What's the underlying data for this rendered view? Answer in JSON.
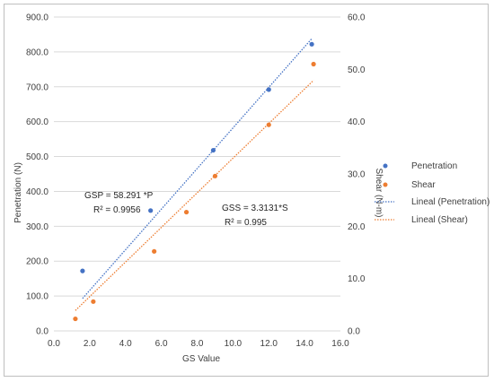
{
  "chart_data": {
    "type": "scatter",
    "xlabel": "GS Value",
    "ylabel": "Penetration (N)",
    "y2label": "Shear (N-m)",
    "xlim": [
      0,
      16
    ],
    "ylim": [
      0,
      900
    ],
    "y2lim": [
      0,
      60
    ],
    "x_ticks": [
      "0.0",
      "2.0",
      "4.0",
      "6.0",
      "8.0",
      "10.0",
      "12.0",
      "14.0",
      "16.0"
    ],
    "y_ticks": [
      "0.0",
      "100.0",
      "200.0",
      "300.0",
      "400.0",
      "500.0",
      "600.0",
      "700.0",
      "800.0",
      "900.0"
    ],
    "y2_ticks": [
      "0.0",
      "10.0",
      "20.0",
      "30.0",
      "40.0",
      "50.0",
      "60.0"
    ],
    "grid": "horizontal",
    "legend_position": "right",
    "series": [
      {
        "name": "Penetration",
        "axis": "left",
        "color": "#4472c4",
        "x": [
          1.6,
          5.4,
          8.9,
          12.0,
          14.4
        ],
        "y": [
          172,
          345,
          518,
          692,
          822
        ]
      },
      {
        "name": "Shear",
        "axis": "right",
        "color": "#ed7d31",
        "x": [
          1.2,
          2.2,
          5.6,
          7.4,
          9.0,
          12.0,
          14.5
        ],
        "y": [
          2.3,
          5.6,
          15.2,
          22.7,
          29.6,
          39.4,
          51.0
        ]
      }
    ],
    "trendlines": [
      {
        "name": "Lineal (Penetration)",
        "axis": "left",
        "color": "#4472c4",
        "x": [
          1.6,
          14.4
        ],
        "y": [
          93,
          838
        ]
      },
      {
        "name": "Lineal (Shear)",
        "axis": "right",
        "color": "#ed7d31",
        "x": [
          1.2,
          14.5
        ],
        "y": [
          3.9,
          47.9
        ]
      }
    ],
    "annotations": [
      {
        "id": "gsp",
        "line1": "GSP = 58.291 *P",
        "line2": "R² = 0.9956"
      },
      {
        "id": "gss",
        "line1": "GSS = 3.3131*S",
        "line2": "R² = 0.995"
      }
    ]
  }
}
